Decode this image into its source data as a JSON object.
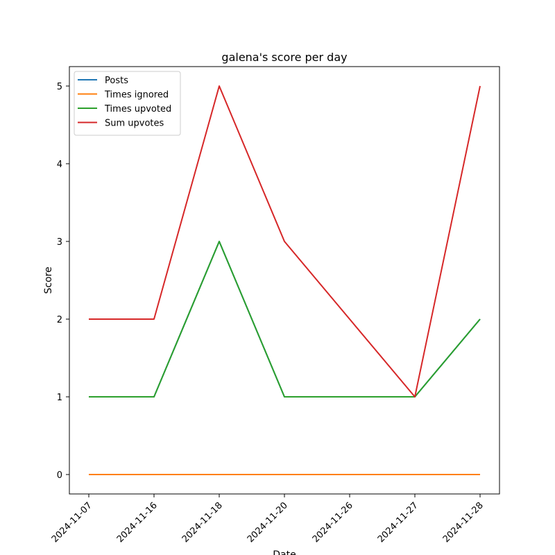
{
  "chart_data": {
    "type": "line",
    "title": "galena's score per day",
    "xlabel": "Date",
    "ylabel": "Score",
    "categories": [
      "2024-11-07",
      "2024-11-16",
      "2024-11-18",
      "2024-11-20",
      "2024-11-26",
      "2024-11-27",
      "2024-11-28"
    ],
    "ylim": [
      -0.25,
      5.25
    ],
    "yticks": [
      0,
      1,
      2,
      3,
      4,
      5
    ],
    "grid": false,
    "legend_position": "top-left",
    "series": [
      {
        "name": "Posts",
        "color": "#1f77b4",
        "values": [
          1,
          1,
          3,
          1,
          1,
          1,
          2
        ]
      },
      {
        "name": "Times ignored",
        "color": "#ff7f0e",
        "values": [
          0,
          0,
          0,
          0,
          0,
          0,
          0
        ]
      },
      {
        "name": "Times upvoted",
        "color": "#2ca02c",
        "values": [
          1,
          1,
          3,
          1,
          1,
          1,
          2
        ]
      },
      {
        "name": "Sum upvotes",
        "color": "#d62728",
        "values": [
          2,
          2,
          5,
          3,
          2,
          1,
          5
        ]
      }
    ]
  }
}
